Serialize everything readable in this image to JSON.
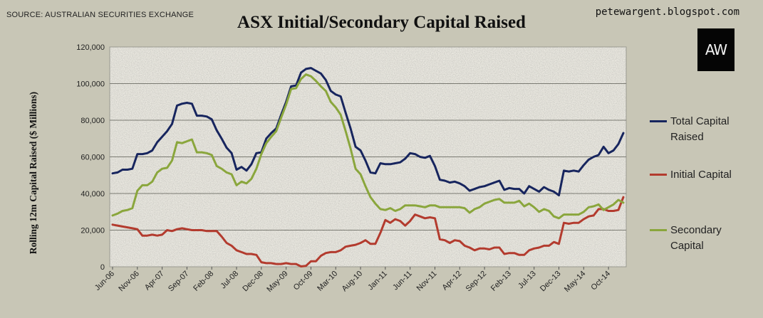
{
  "header": {
    "source": "SOURCE: AUSTRALIAN SECURITIES EXCHANGE",
    "blog": "petewargent.blogspot.com",
    "logo_text": "AW"
  },
  "chart_data": {
    "type": "line",
    "title": "ASX Initial/Secondary Capital Raised",
    "xlabel": "",
    "ylabel": "Rolling 12m Capital Raised ($ Millions)",
    "ylim": [
      0,
      120000
    ],
    "yticks": [
      0,
      20000,
      40000,
      60000,
      80000,
      100000,
      120000
    ],
    "ytick_labels": [
      "0",
      "20,000",
      "40,000",
      "60,000",
      "80,000",
      "100,000",
      "120,000"
    ],
    "xtick_labels": [
      "Jun-06",
      "Nov-06",
      "Apr-07",
      "Sep-07",
      "Feb-08",
      "Jul-08",
      "Dec-08",
      "May-09",
      "Oct-09",
      "Mar-10",
      "Aug-10",
      "Jan-11",
      "Jun-11",
      "Nov-11",
      "Apr-12",
      "Sep-12",
      "Feb-13",
      "Jul-13",
      "Dec-13",
      "May-14",
      "Oct-14"
    ],
    "x_start": "Jun-06",
    "x_end": "Dec-14",
    "grid": true,
    "legend": "right",
    "series": [
      {
        "name": "Total Capital Raised",
        "color": "#17255e",
        "values": [
          51000,
          51500,
          53000,
          53000,
          53500,
          61500,
          61500,
          62000,
          63500,
          68000,
          71000,
          74000,
          78000,
          88000,
          89000,
          89500,
          89000,
          82500,
          82500,
          82000,
          80500,
          74500,
          70000,
          65000,
          62000,
          53000,
          54500,
          52500,
          56000,
          62000,
          62500,
          70000,
          73000,
          75500,
          83000,
          90000,
          98500,
          99000,
          106000,
          108000,
          108500,
          107000,
          105500,
          102000,
          96000,
          94000,
          93000,
          84000,
          75500,
          65500,
          63500,
          58000,
          51500,
          51000,
          56500,
          56000,
          56000,
          56500,
          57000,
          59000,
          62000,
          61500,
          60000,
          59500,
          60500,
          55000,
          47500,
          47000,
          46000,
          46500,
          45500,
          44000,
          41500,
          42500,
          43500,
          44000,
          45000,
          46000,
          47000,
          42000,
          43000,
          42500,
          42500,
          40000,
          44000,
          42500,
          41000,
          43500,
          42000,
          41000,
          39000,
          52500,
          52000,
          52500,
          52000,
          55500,
          58500,
          60000,
          61000,
          65500,
          62000,
          63500,
          67000,
          73000
        ]
      },
      {
        "name": "Initial Capital",
        "color": "#b33b2e",
        "values": [
          23000,
          22500,
          22000,
          21500,
          21000,
          20500,
          17000,
          17000,
          17500,
          17000,
          17500,
          20000,
          19500,
          20500,
          21000,
          20500,
          20000,
          20000,
          20000,
          19500,
          19500,
          19500,
          16500,
          13000,
          11500,
          9000,
          8000,
          7000,
          7000,
          6500,
          2500,
          2000,
          2000,
          1500,
          1500,
          2000,
          1500,
          1500,
          200,
          500,
          3000,
          3000,
          6000,
          7500,
          8000,
          8000,
          9000,
          11000,
          11500,
          12000,
          13000,
          14500,
          12500,
          12500,
          18500,
          25500,
          24000,
          26000,
          25000,
          22500,
          25000,
          28500,
          27500,
          26500,
          27000,
          26500,
          15000,
          14500,
          13000,
          14500,
          14000,
          11500,
          10500,
          9000,
          10000,
          10000,
          9500,
          10500,
          10500,
          7000,
          7500,
          7500,
          6500,
          6500,
          9000,
          10000,
          10500,
          11500,
          11500,
          13500,
          12500,
          24000,
          23500,
          24000,
          24000,
          26000,
          27500,
          28000,
          31500,
          31500,
          30500,
          30500,
          31000,
          38000
        ]
      },
      {
        "name": "Secondary Capital",
        "color": "#8aa63c",
        "values": [
          28000,
          29000,
          30500,
          31000,
          32000,
          41500,
          44500,
          44500,
          46500,
          51500,
          53500,
          54000,
          58000,
          68000,
          67500,
          68500,
          69500,
          62500,
          62500,
          62000,
          61000,
          55000,
          53500,
          51500,
          50500,
          44500,
          46500,
          45500,
          48000,
          53500,
          61500,
          67500,
          71000,
          74000,
          81500,
          88500,
          97000,
          97500,
          102500,
          105000,
          104000,
          101500,
          98500,
          96000,
          90000,
          87000,
          83000,
          74000,
          64500,
          53500,
          50500,
          44000,
          38000,
          34500,
          31500,
          31000,
          32000,
          30500,
          31500,
          33500,
          33500,
          33500,
          33000,
          32500,
          33500,
          33500,
          32500,
          32500,
          32500,
          32500,
          32500,
          32000,
          29500,
          31500,
          32500,
          34500,
          35500,
          36500,
          37000,
          35000,
          35000,
          35000,
          36000,
          33000,
          34500,
          32500,
          30000,
          31500,
          30500,
          27500,
          26500,
          28500,
          28500,
          28500,
          28500,
          30000,
          32500,
          33000,
          34000,
          31000,
          32500,
          34000,
          36500,
          35000
        ]
      }
    ]
  }
}
